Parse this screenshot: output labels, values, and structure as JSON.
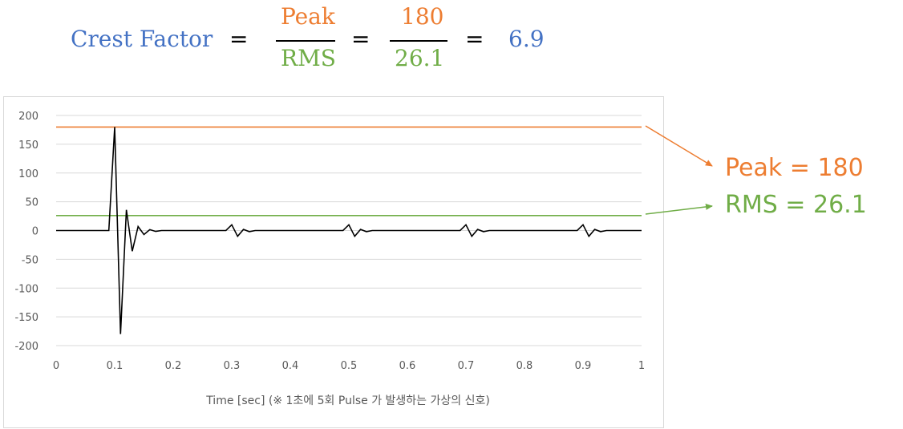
{
  "formula": {
    "lhs": "Crest Factor",
    "eq": "=",
    "num1": "Peak",
    "den1": "RMS",
    "num2": "180",
    "den2": "26.1",
    "result": "6.9"
  },
  "annotations": {
    "peak": "Peak = 180",
    "rms": "RMS = 26.1"
  },
  "colors": {
    "signal": "#000000",
    "peak": "#ed7d31",
    "rms": "#70ad47",
    "title": "#4472c4",
    "grid": "#d9d9d9"
  },
  "chart_data": {
    "type": "line",
    "xlabel": "Time [sec]     (※ 1초에 5회 Pulse 가 발생하는 가상의 신호)",
    "ylabel": "",
    "xlim": [
      0,
      1
    ],
    "ylim": [
      -200,
      200
    ],
    "xticks": [
      "0",
      "0.1",
      "0.2",
      "0.3",
      "0.4",
      "0.5",
      "0.6",
      "0.7",
      "0.8",
      "0.9",
      "1"
    ],
    "yticks": [
      "200",
      "150",
      "100",
      "50",
      "0",
      "-50",
      "-100",
      "-150",
      "-200"
    ],
    "grid": true,
    "series": [
      {
        "x": [
          0,
          0.09,
          0.1,
          0.11,
          0.12,
          0.13,
          0.14,
          0.15,
          0.16,
          0.17,
          0.18,
          0.29,
          0.3,
          0.31,
          0.32,
          0.33,
          0.34,
          0.49,
          0.5,
          0.51,
          0.52,
          0.53,
          0.54,
          0.69,
          0.7,
          0.71,
          0.72,
          0.73,
          0.74,
          0.89,
          0.9,
          0.91,
          0.92,
          0.93,
          0.94,
          1.0
        ],
        "y": [
          0,
          0,
          180,
          -180,
          36,
          -36,
          7,
          -7,
          1.5,
          -1.5,
          0,
          0,
          10,
          -10,
          2,
          -2,
          0,
          0,
          10,
          -10,
          2,
          -2,
          0,
          0,
          10,
          -10,
          2,
          -2,
          0,
          0,
          10,
          -10,
          2,
          -2,
          0,
          0
        ]
      },
      {
        "name": "Peak",
        "x": [
          0,
          1
        ],
        "y": [
          180,
          180
        ]
      },
      {
        "name": "RMS",
        "x": [
          0,
          1
        ],
        "y": [
          26.1,
          26.1
        ]
      }
    ]
  }
}
